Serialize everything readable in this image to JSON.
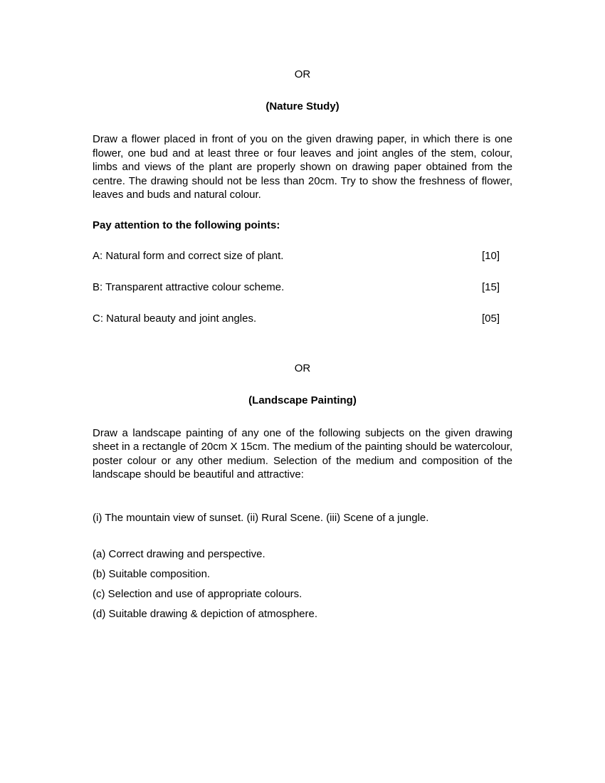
{
  "document": {
    "background_color": "#ffffff",
    "text_color": "#000000",
    "font_family": "Arial",
    "body_fontsize": 15,
    "separator1": "OR",
    "section1": {
      "title": "(Nature Study)",
      "paragraph": "Draw a flower placed in front of you on the given drawing paper, in which there is one flower, one bud and at least three or four leaves and joint angles of the stem, colour, limbs and views of the plant are properly shown on drawing paper obtained from the centre. The drawing should not be less than 20cm. Try to show the freshness of flower, leaves and buds and natural colour.",
      "attention_heading": "Pay attention to the following points:",
      "criteria": [
        {
          "label": "A: Natural form and correct size of plant.",
          "marks": "[10]"
        },
        {
          "label": "B: Transparent attractive colour scheme.",
          "marks": "[15]"
        },
        {
          "label": "C: Natural beauty and joint angles.",
          "marks": "[05]"
        }
      ]
    },
    "separator2": "OR",
    "section2": {
      "title": "(Landscape Painting)",
      "paragraph": "Draw a landscape painting of any one of the following subjects on the given drawing sheet in a rectangle of 20cm X 15cm. The medium of the painting should be watercolour, poster colour or any other medium. Selection of the medium and composition of the landscape should be beautiful and attractive:",
      "options": "(i) The mountain view of sunset. (ii) Rural Scene. (iii) Scene of a jungle.",
      "list": [
        "(a) Correct drawing and perspective.",
        "(b) Suitable composition.",
        "(c) Selection and use of appropriate colours.",
        "(d) Suitable drawing & depiction of atmosphere."
      ]
    }
  }
}
